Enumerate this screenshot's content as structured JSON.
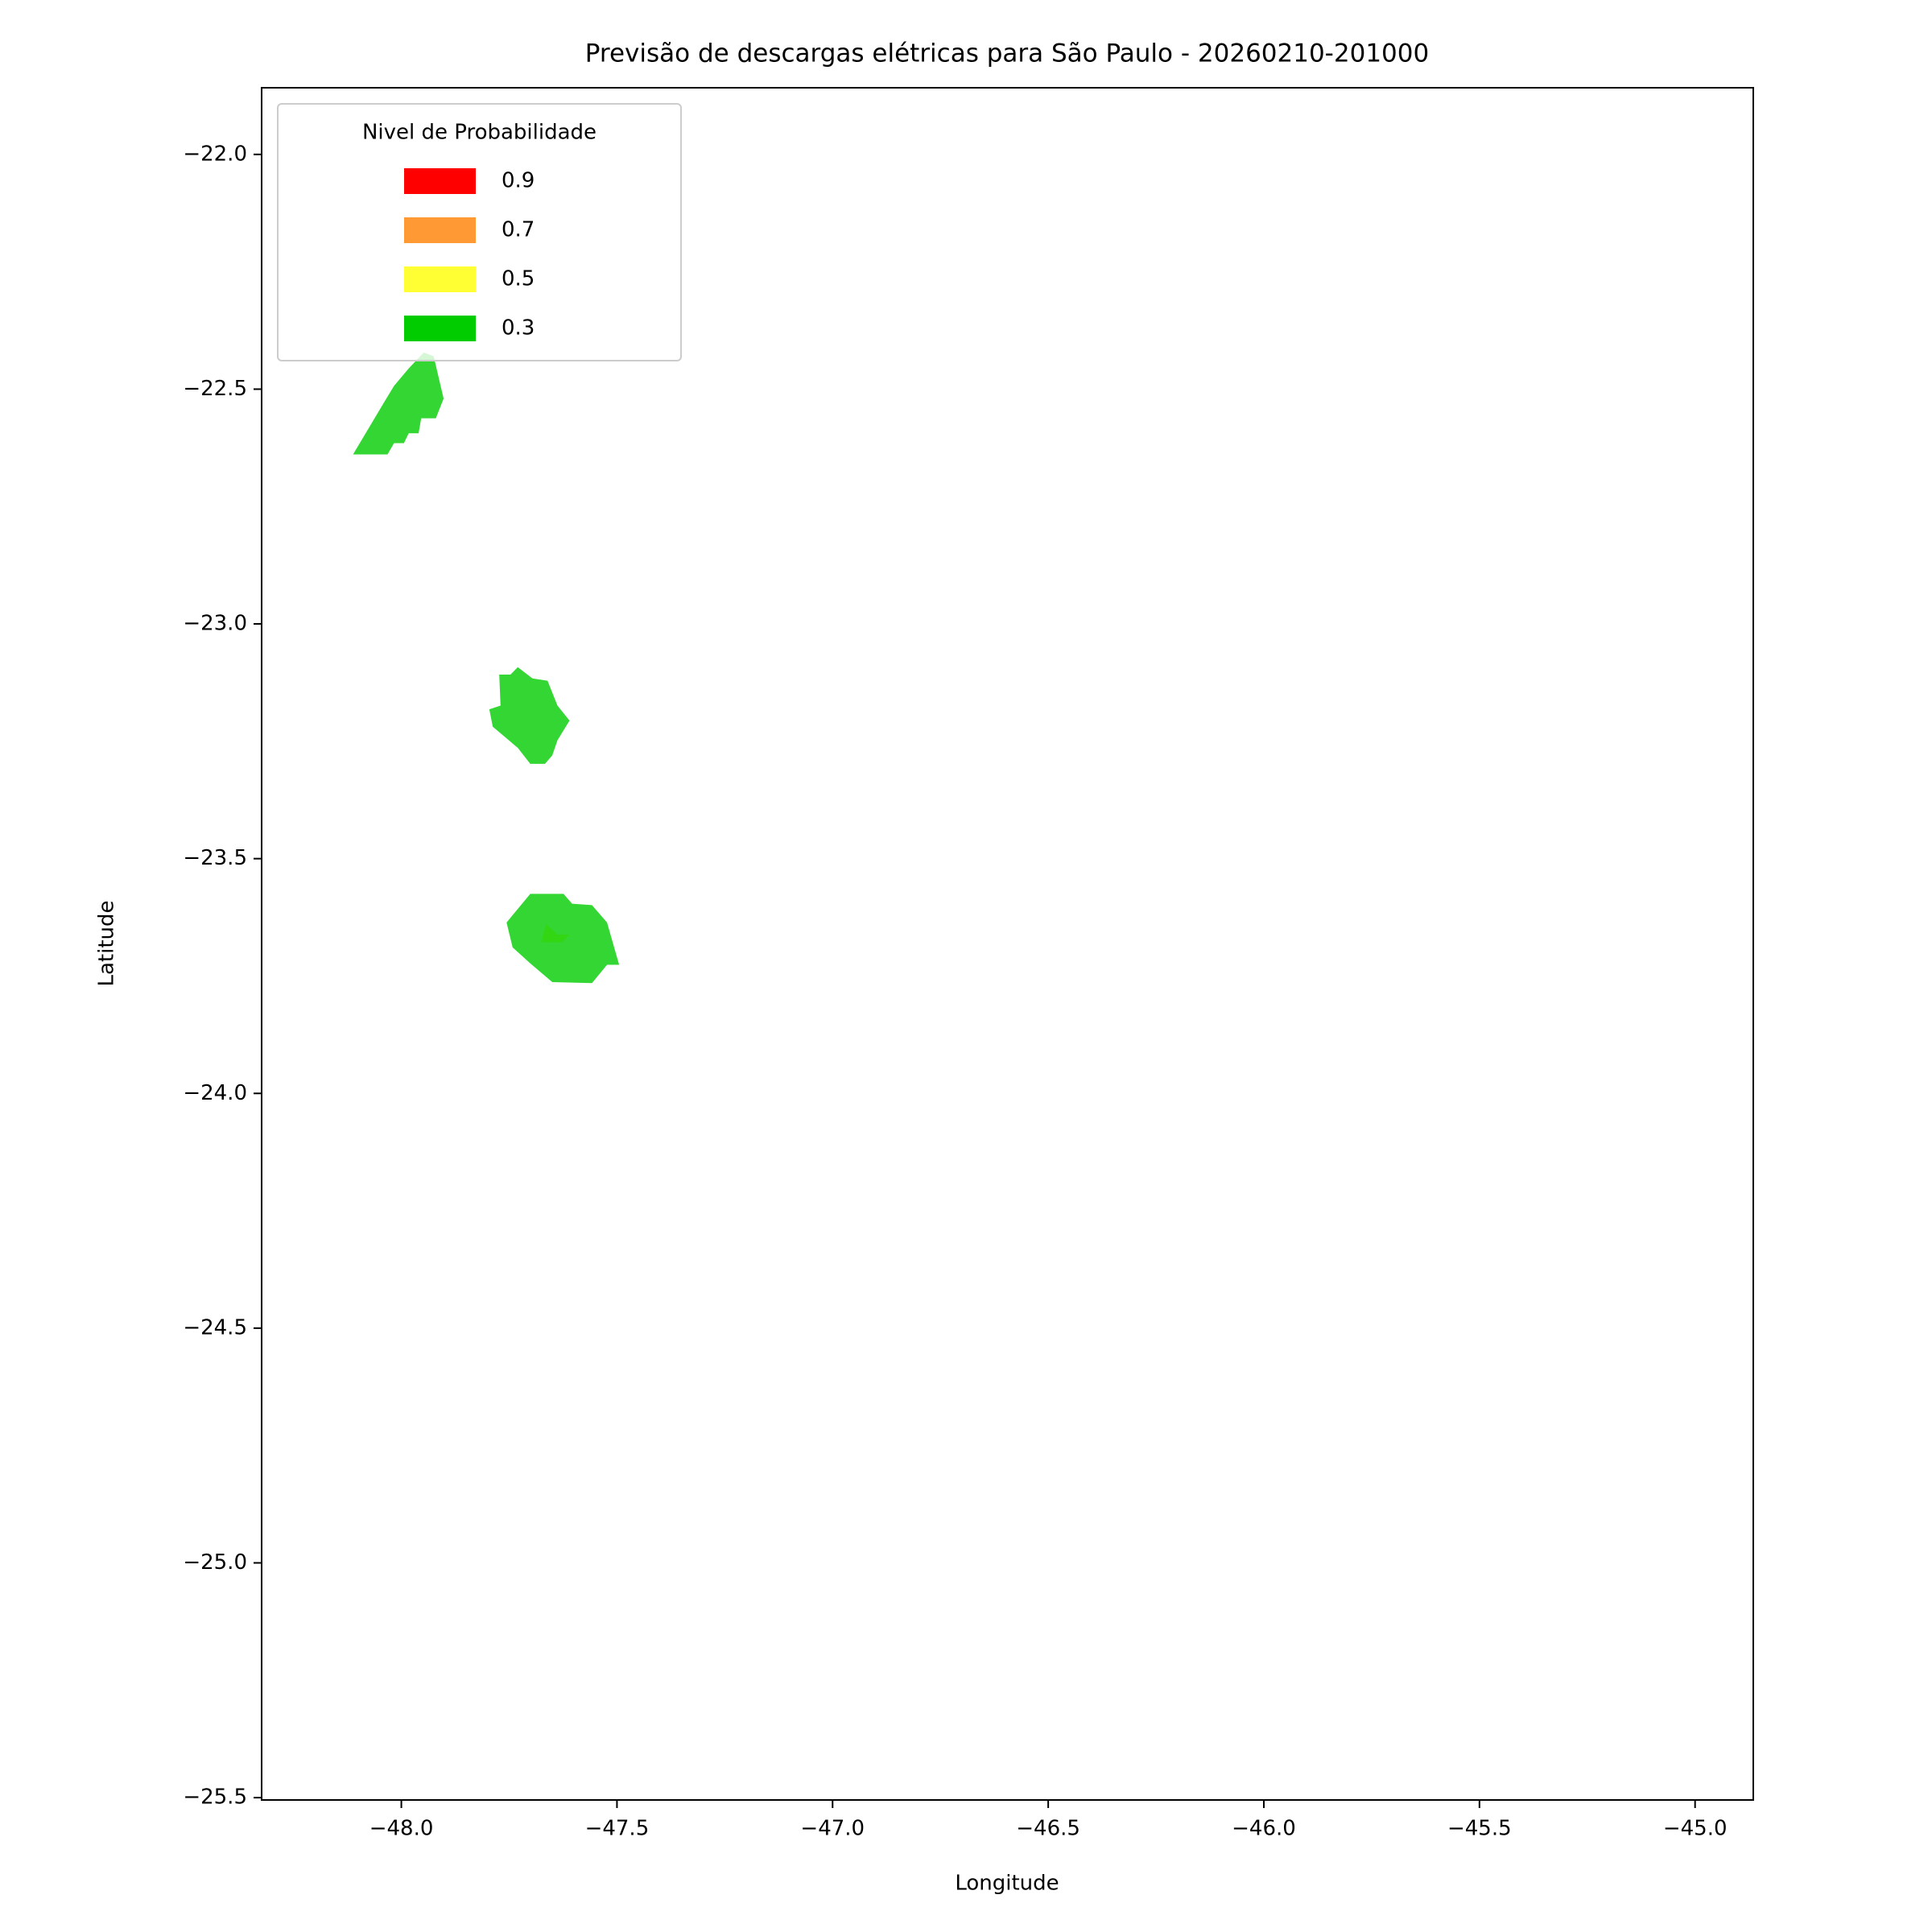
{
  "chart_data": {
    "type": "contour",
    "title": "Previsão de descargas elétricas para São Paulo - 20260210-201000",
    "xlabel": "Longitude",
    "ylabel": "Latitude",
    "xlim": [
      -48.324,
      -44.865
    ],
    "ylim": [
      -25.505,
      -21.858
    ],
    "xticks": [
      {
        "value": -48,
        "label": "−48.0"
      },
      {
        "value": -47.5,
        "label": "−47.5"
      },
      {
        "value": -47,
        "label": "−47.0"
      },
      {
        "value": -46.5,
        "label": "−46.5"
      },
      {
        "value": -46,
        "label": "−46.0"
      },
      {
        "value": -45.5,
        "label": "−45.5"
      },
      {
        "value": -45,
        "label": "−45.0"
      }
    ],
    "yticks": [
      {
        "value": -22,
        "label": "−22.0"
      },
      {
        "value": -22.5,
        "label": "−22.5"
      },
      {
        "value": -23,
        "label": "−23.0"
      },
      {
        "value": -23.5,
        "label": "−23.5"
      },
      {
        "value": -24,
        "label": "−24.0"
      },
      {
        "value": -24.5,
        "label": "−24.5"
      },
      {
        "value": -25,
        "label": "−25.0"
      },
      {
        "value": -25.5,
        "label": "−25.5"
      }
    ],
    "legend_title": "Nivel de Probabilidade",
    "legend": "upper left",
    "series": [
      {
        "name": "0.9",
        "color": "#ff0000",
        "polygons": []
      },
      {
        "name": "0.7",
        "color": "#ff9933",
        "polygons": []
      },
      {
        "name": "0.5",
        "color": "#ffff33",
        "polygons": [
          {
            "x": [
              -47.676,
              -47.664,
              -47.638,
              -47.61,
              -47.627
            ],
            "y": [
              -23.678,
              -23.639,
              -23.662,
              -23.662,
              -23.678
            ]
          }
        ]
      },
      {
        "name": "0.3",
        "color": "#00cc00",
        "polygons": [
          {
            "x": [
              -48.112,
              -48.032,
              -48.017,
              -47.994,
              -47.983,
              -47.96,
              -47.954,
              -47.92,
              -47.902,
              -47.925,
              -47.948,
              -47.983,
              -48.017,
              -48.04
            ],
            "y": [
              -22.639,
              -22.639,
              -22.615,
              -22.615,
              -22.594,
              -22.594,
              -22.562,
              -22.562,
              -22.52,
              -22.43,
              -22.422,
              -22.456,
              -22.493,
              -22.528
            ]
          },
          {
            "x": [
              -47.773,
              -47.747,
              -47.73,
              -47.696,
              -47.661,
              -47.638,
              -47.61,
              -47.638,
              -47.65,
              -47.667,
              -47.701,
              -47.73,
              -47.788,
              -47.796,
              -47.77
            ],
            "y": [
              -23.108,
              -23.108,
              -23.092,
              -23.116,
              -23.121,
              -23.174,
              -23.206,
              -23.248,
              -23.28,
              -23.298,
              -23.298,
              -23.264,
              -23.219,
              -23.182,
              -23.174
            ]
          },
          {
            "x": [
              -47.701,
              -47.624,
              -47.604,
              -47.558,
              -47.523,
              -47.495,
              -47.523,
              -47.558,
              -47.65,
              -47.701,
              -47.742,
              -47.756
            ],
            "y": [
              -23.575,
              -23.575,
              -23.596,
              -23.599,
              -23.636,
              -23.726,
              -23.726,
              -23.765,
              -23.763,
              -23.723,
              -23.689,
              -23.636
            ]
          }
        ]
      }
    ]
  }
}
